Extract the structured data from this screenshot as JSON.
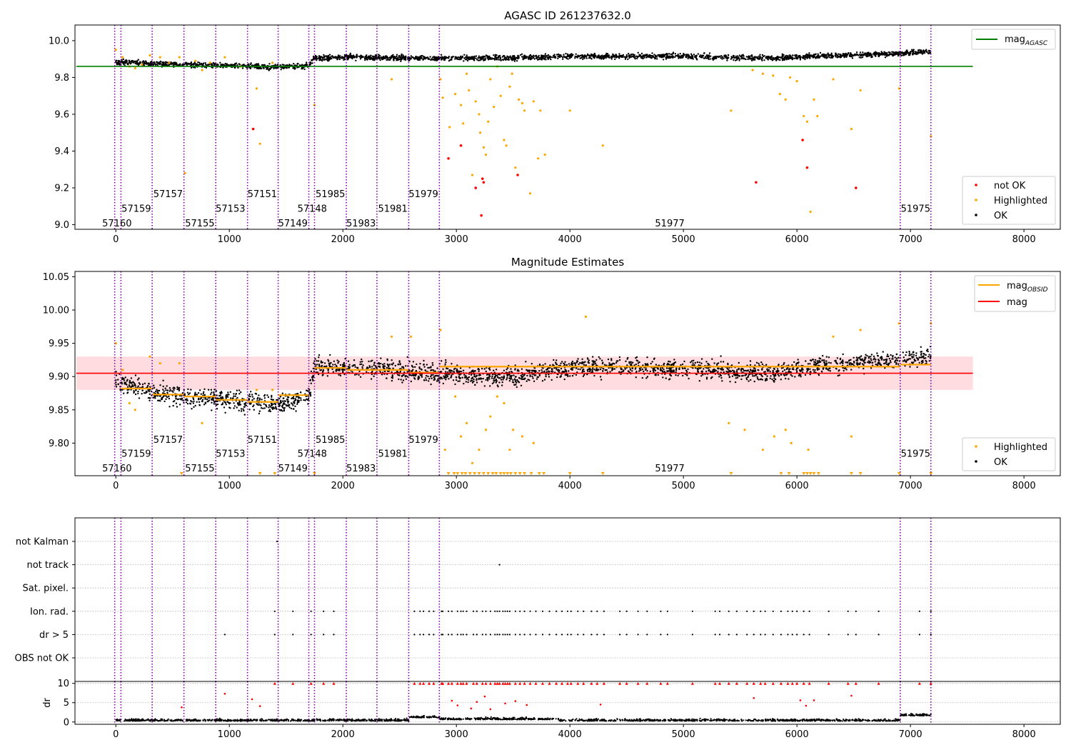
{
  "figure": {
    "colors": {
      "ok": "#000000",
      "highlighted": "#ffa500",
      "not_ok": "#ff0000",
      "obsid_line": "#8000a0",
      "agasc_line": "#008000",
      "mean_line": "#ff0000",
      "band": "#ffd0d4",
      "flag_grid": "#b0b0b0"
    }
  },
  "chart_data": [
    {
      "id": "top",
      "type": "scatter",
      "title": "AGASC ID 261237632.0",
      "xlabel": "",
      "ylabel": "",
      "xlim": [
        -360,
        8320
      ],
      "ylim": [
        8.975,
        10.085
      ],
      "xticks": [
        0,
        1000,
        2000,
        3000,
        4000,
        5000,
        6000,
        7000,
        8000
      ],
      "xtick_labels": [
        "0",
        "1000",
        "2000",
        "3000",
        "4000",
        "5000",
        "6000",
        "7000",
        "8000"
      ],
      "yticks": [
        9.0,
        9.2,
        9.4,
        9.6,
        9.8,
        10.0
      ],
      "ytick_labels": [
        "9.0",
        "9.2",
        "9.4",
        "9.6",
        "9.8",
        "10.0"
      ],
      "legend_upper": {
        "placement": "top-right",
        "entries": [
          {
            "label": "mag",
            "sub": "AGASC",
            "kind": "line",
            "color": "#008000"
          }
        ]
      },
      "legend_lower": {
        "placement": "bottom-right",
        "entries": [
          {
            "label": "not OK",
            "kind": "dot",
            "color": "#ff0000"
          },
          {
            "label": "Highlighted",
            "kind": "dot",
            "color": "#ffa500"
          },
          {
            "label": "OK",
            "kind": "dot",
            "color": "#000000"
          }
        ]
      },
      "agasc_mag": 9.86,
      "obsid_boundaries": [
        -10,
        45,
        320,
        600,
        880,
        1160,
        1430,
        1700,
        1750,
        2030,
        2300,
        2580,
        2850,
        6910,
        7180
      ],
      "obsid_labels": [
        {
          "text": "57160",
          "x": 10,
          "y": 9.01
        },
        {
          "text": "57159",
          "x": 180,
          "y": 9.09
        },
        {
          "text": "57157",
          "x": 460,
          "y": 9.17
        },
        {
          "text": "57155",
          "x": 740,
          "y": 9.01
        },
        {
          "text": "57153",
          "x": 1010,
          "y": 9.09
        },
        {
          "text": "57151",
          "x": 1290,
          "y": 9.17
        },
        {
          "text": "57149",
          "x": 1560,
          "y": 9.01
        },
        {
          "text": "57148",
          "x": 1730,
          "y": 9.09
        },
        {
          "text": "51985",
          "x": 1890,
          "y": 9.17
        },
        {
          "text": "51983",
          "x": 2160,
          "y": 9.01
        },
        {
          "text": "51981",
          "x": 2440,
          "y": 9.09
        },
        {
          "text": "51979",
          "x": 2710,
          "y": 9.17
        },
        {
          "text": "51977",
          "x": 4880,
          "y": 9.01
        },
        {
          "text": "51975",
          "x": 7045,
          "y": 9.09
        }
      ],
      "ok_trend": [
        [
          0,
          9.885
        ],
        [
          330,
          9.875
        ],
        [
          600,
          9.87
        ],
        [
          900,
          9.865
        ],
        [
          1160,
          9.86
        ],
        [
          1440,
          9.855
        ],
        [
          1700,
          9.865
        ],
        [
          1750,
          9.905
        ],
        [
          2000,
          9.91
        ],
        [
          2850,
          9.905
        ],
        [
          3500,
          9.905
        ],
        [
          4000,
          9.915
        ],
        [
          5000,
          9.915
        ],
        [
          5800,
          9.905
        ],
        [
          6100,
          9.915
        ],
        [
          6900,
          9.93
        ],
        [
          7180,
          9.94
        ]
      ],
      "ok_scatter": 0.016,
      "highlighted": [
        [
          0,
          9.95
        ],
        [
          60,
          9.91
        ],
        [
          120,
          9.86
        ],
        [
          170,
          9.85
        ],
        [
          230,
          9.87
        ],
        [
          300,
          9.92
        ],
        [
          390,
          9.91
        ],
        [
          470,
          9.88
        ],
        [
          560,
          9.91
        ],
        [
          610,
          9.28
        ],
        [
          700,
          9.89
        ],
        [
          760,
          9.84
        ],
        [
          830,
          9.88
        ],
        [
          960,
          9.91
        ],
        [
          1100,
          9.86
        ],
        [
          1240,
          9.74
        ],
        [
          1270,
          9.44
        ],
        [
          1380,
          9.88
        ],
        [
          1750,
          9.65
        ],
        [
          2430,
          9.79
        ],
        [
          2860,
          9.79
        ],
        [
          2880,
          9.69
        ],
        [
          2940,
          9.53
        ],
        [
          2990,
          9.71
        ],
        [
          3040,
          9.65
        ],
        [
          3060,
          9.55
        ],
        [
          3090,
          9.82
        ],
        [
          3110,
          9.73
        ],
        [
          3140,
          9.27
        ],
        [
          3170,
          9.67
        ],
        [
          3200,
          9.6
        ],
        [
          3210,
          9.5
        ],
        [
          3240,
          9.42
        ],
        [
          3260,
          9.38
        ],
        [
          3280,
          9.56
        ],
        [
          3300,
          9.79
        ],
        [
          3330,
          9.64
        ],
        [
          3360,
          9.86
        ],
        [
          3390,
          9.7
        ],
        [
          3420,
          9.46
        ],
        [
          3440,
          9.43
        ],
        [
          3470,
          9.75
        ],
        [
          3490,
          9.82
        ],
        [
          3520,
          9.31
        ],
        [
          3550,
          9.68
        ],
        [
          3580,
          9.66
        ],
        [
          3600,
          9.62
        ],
        [
          3650,
          9.17
        ],
        [
          3680,
          9.67
        ],
        [
          3720,
          9.36
        ],
        [
          3740,
          9.62
        ],
        [
          3780,
          9.38
        ],
        [
          4000,
          9.62
        ],
        [
          4290,
          9.43
        ],
        [
          5420,
          9.62
        ],
        [
          5610,
          9.84
        ],
        [
          5700,
          9.82
        ],
        [
          5790,
          9.81
        ],
        [
          5850,
          9.71
        ],
        [
          5900,
          9.68
        ],
        [
          5940,
          9.8
        ],
        [
          6000,
          9.78
        ],
        [
          6060,
          9.59
        ],
        [
          6090,
          9.56
        ],
        [
          6120,
          9.07
        ],
        [
          6150,
          9.68
        ],
        [
          6180,
          9.59
        ],
        [
          6320,
          9.79
        ],
        [
          6480,
          9.52
        ],
        [
          6560,
          9.73
        ],
        [
          6900,
          9.74
        ],
        [
          7180,
          9.48
        ]
      ],
      "not_ok": [
        [
          1210,
          9.52
        ],
        [
          2930,
          9.36
        ],
        [
          3040,
          9.43
        ],
        [
          3170,
          9.2
        ],
        [
          3220,
          9.05
        ],
        [
          3230,
          9.25
        ],
        [
          3240,
          9.23
        ],
        [
          3540,
          9.27
        ],
        [
          5640,
          9.23
        ],
        [
          6050,
          9.46
        ],
        [
          6090,
          9.31
        ],
        [
          6520,
          9.2
        ]
      ]
    },
    {
      "id": "middle",
      "type": "scatter",
      "title": "Magnitude Estimates",
      "xlabel": "",
      "ylabel": "",
      "xlim": [
        -360,
        8320
      ],
      "ylim": [
        9.751,
        10.058
      ],
      "xticks": [
        0,
        1000,
        2000,
        3000,
        4000,
        5000,
        6000,
        7000,
        8000
      ],
      "xtick_labels": [
        "0",
        "1000",
        "2000",
        "3000",
        "4000",
        "5000",
        "6000",
        "7000",
        "8000"
      ],
      "yticks": [
        9.8,
        9.85,
        9.9,
        9.95,
        10.0,
        10.05
      ],
      "ytick_labels": [
        "9.80",
        "9.85",
        "9.90",
        "9.95",
        "10.00",
        "10.05"
      ],
      "legend_upper": {
        "placement": "top-right",
        "entries": [
          {
            "label": "mag",
            "sub": "OBSID",
            "kind": "line",
            "color": "#ffa500"
          },
          {
            "label": "mag",
            "sub": "",
            "kind": "line",
            "color": "#ff0000"
          }
        ]
      },
      "legend_lower": {
        "placement": "bottom-right",
        "entries": [
          {
            "label": "Highlighted",
            "kind": "dot",
            "color": "#ffa500"
          },
          {
            "label": "OK",
            "kind": "dot",
            "color": "#000000"
          }
        ]
      },
      "mean_mag": 9.905,
      "band": [
        9.88,
        9.93
      ],
      "obsid_means": [
        {
          "x0": 45,
          "x1": 320,
          "y": 9.882
        },
        {
          "x0": 320,
          "x1": 600,
          "y": 9.873
        },
        {
          "x0": 600,
          "x1": 880,
          "y": 9.87
        },
        {
          "x0": 880,
          "x1": 1160,
          "y": 9.865
        },
        {
          "x0": 1160,
          "x1": 1430,
          "y": 9.862
        },
        {
          "x0": 1430,
          "x1": 1700,
          "y": 9.872
        },
        {
          "x0": 1750,
          "x1": 2030,
          "y": 9.913
        },
        {
          "x0": 2030,
          "x1": 2300,
          "y": 9.91
        },
        {
          "x0": 2300,
          "x1": 2580,
          "y": 9.91
        },
        {
          "x0": 2580,
          "x1": 2850,
          "y": 9.906
        },
        {
          "x0": 2850,
          "x1": 6910,
          "y": 9.915
        },
        {
          "x0": 6910,
          "x1": 7180,
          "y": 9.918
        }
      ],
      "obsid_labels": [
        {
          "text": "57160",
          "x": 10,
          "y": 9.763
        },
        {
          "text": "57159",
          "x": 180,
          "y": 9.785
        },
        {
          "text": "57157",
          "x": 460,
          "y": 9.806
        },
        {
          "text": "57155",
          "x": 740,
          "y": 9.763
        },
        {
          "text": "57153",
          "x": 1010,
          "y": 9.785
        },
        {
          "text": "57151",
          "x": 1290,
          "y": 9.806
        },
        {
          "text": "57149",
          "x": 1560,
          "y": 9.763
        },
        {
          "text": "57148",
          "x": 1730,
          "y": 9.785
        },
        {
          "text": "51985",
          "x": 1890,
          "y": 9.806
        },
        {
          "text": "51983",
          "x": 2160,
          "y": 9.763
        },
        {
          "text": "51981",
          "x": 2440,
          "y": 9.785
        },
        {
          "text": "51979",
          "x": 2710,
          "y": 9.806
        },
        {
          "text": "51977",
          "x": 4880,
          "y": 9.763
        },
        {
          "text": "51975",
          "x": 7045,
          "y": 9.785
        }
      ],
      "ok_trend": [
        [
          0,
          9.895
        ],
        [
          330,
          9.875
        ],
        [
          600,
          9.87
        ],
        [
          900,
          9.865
        ],
        [
          1160,
          9.862
        ],
        [
          1440,
          9.858
        ],
        [
          1700,
          9.872
        ],
        [
          1750,
          9.915
        ],
        [
          2000,
          9.915
        ],
        [
          2850,
          9.905
        ],
        [
          3500,
          9.9
        ],
        [
          4000,
          9.915
        ],
        [
          5000,
          9.912
        ],
        [
          5800,
          9.905
        ],
        [
          6100,
          9.915
        ],
        [
          6900,
          9.925
        ],
        [
          7180,
          9.93
        ]
      ],
      "ok_scatter": 0.016,
      "highlighted": [
        [
          0,
          9.95
        ],
        [
          60,
          9.91
        ],
        [
          120,
          9.86
        ],
        [
          170,
          9.85
        ],
        [
          300,
          9.93
        ],
        [
          390,
          9.92
        ],
        [
          560,
          9.92
        ],
        [
          760,
          9.83
        ],
        [
          1240,
          9.88
        ],
        [
          1380,
          9.88
        ],
        [
          2430,
          9.96
        ],
        [
          2600,
          9.96
        ],
        [
          2860,
          9.97
        ],
        [
          2900,
          9.79
        ],
        [
          2990,
          9.87
        ],
        [
          3040,
          9.81
        ],
        [
          3090,
          9.83
        ],
        [
          3140,
          9.77
        ],
        [
          3200,
          9.79
        ],
        [
          3260,
          9.82
        ],
        [
          3300,
          9.84
        ],
        [
          3360,
          9.87
        ],
        [
          3420,
          9.86
        ],
        [
          3470,
          9.79
        ],
        [
          3500,
          9.82
        ],
        [
          3580,
          9.81
        ],
        [
          3680,
          9.8
        ],
        [
          4140,
          9.99
        ],
        [
          5400,
          9.83
        ],
        [
          5540,
          9.82
        ],
        [
          5700,
          9.79
        ],
        [
          5800,
          9.81
        ],
        [
          5900,
          9.82
        ],
        [
          5950,
          9.8
        ],
        [
          6100,
          9.79
        ],
        [
          6320,
          9.96
        ],
        [
          6480,
          9.81
        ],
        [
          6560,
          9.97
        ],
        [
          6900,
          9.98
        ],
        [
          7180,
          9.98
        ]
      ],
      "clipped_x": [
        580,
        1270,
        1400,
        1750,
        2930,
        2980,
        3010,
        3050,
        3080,
        3120,
        3160,
        3200,
        3240,
        3280,
        3320,
        3350,
        3390,
        3420,
        3450,
        3480,
        3520,
        3560,
        3600,
        3660,
        3730,
        3770,
        4000,
        4290,
        5420,
        5860,
        5930,
        6060,
        6090,
        6120,
        6150,
        6190,
        6480,
        6560,
        6900,
        7180
      ]
    },
    {
      "id": "flags",
      "type": "scatter",
      "title": "",
      "xlabel": "",
      "ylabel": "",
      "xlim": [
        -360,
        8320
      ],
      "categories": [
        "not Kalman",
        "not track",
        "Sat. pixel.",
        "Ion. rad.",
        "dr > 5",
        "OBS not OK"
      ],
      "points": {
        "not Kalman": [
          1420,
          7180
        ],
        "not track": [
          3380
        ],
        "Sat. pixel.": [],
        "Ion. rad.": [
          1400,
          1560,
          1720,
          1830,
          1920,
          2630,
          2680,
          2710,
          2760,
          2800,
          2870,
          2880,
          2930,
          2960,
          3010,
          3040,
          3060,
          3090,
          3150,
          3180,
          3230,
          3260,
          3300,
          3340,
          3360,
          3380,
          3410,
          3430,
          3450,
          3470,
          3520,
          3560,
          3600,
          3650,
          3700,
          3760,
          3820,
          3880,
          3930,
          3980,
          4010,
          4070,
          4120,
          4190,
          4240,
          4300,
          4440,
          4500,
          4600,
          4680,
          4800,
          4860,
          5080,
          5280,
          5320,
          5400,
          5470,
          5560,
          5620,
          5680,
          5720,
          5790,
          5860,
          5920,
          5960,
          6000,
          6060,
          6110,
          6280,
          6450,
          6520,
          6720,
          7080,
          7180
        ]
      }
    },
    {
      "id": "dr",
      "type": "scatter",
      "title": "",
      "xlabel": "",
      "ylabel": "dr",
      "xlim": [
        -360,
        8320
      ],
      "ylim": [
        -0.6,
        10.5
      ],
      "xticks": [
        0,
        1000,
        2000,
        3000,
        4000,
        5000,
        6000,
        7000,
        8000
      ],
      "xtick_labels": [
        "0",
        "1000",
        "2000",
        "3000",
        "4000",
        "5000",
        "6000",
        "7000",
        "8000"
      ],
      "yticks": [
        0,
        5,
        10
      ],
      "ytick_labels": [
        "0",
        "5",
        "10"
      ],
      "red_scatter": [
        [
          960,
          7.3
        ],
        [
          1200,
          5.9
        ],
        [
          1270,
          4.1
        ],
        [
          580,
          3.8
        ],
        [
          2960,
          5.5
        ],
        [
          3010,
          4.3
        ],
        [
          3130,
          3.5
        ],
        [
          3180,
          5.2
        ],
        [
          3250,
          6.6
        ],
        [
          3300,
          3.3
        ],
        [
          3430,
          4.8
        ],
        [
          3520,
          5.4
        ],
        [
          3620,
          4.4
        ],
        [
          4270,
          4.5
        ],
        [
          5620,
          6.2
        ],
        [
          6030,
          5.6
        ],
        [
          6080,
          4.2
        ],
        [
          6150,
          5.6
        ],
        [
          6480,
          6.8
        ]
      ]
    }
  ]
}
